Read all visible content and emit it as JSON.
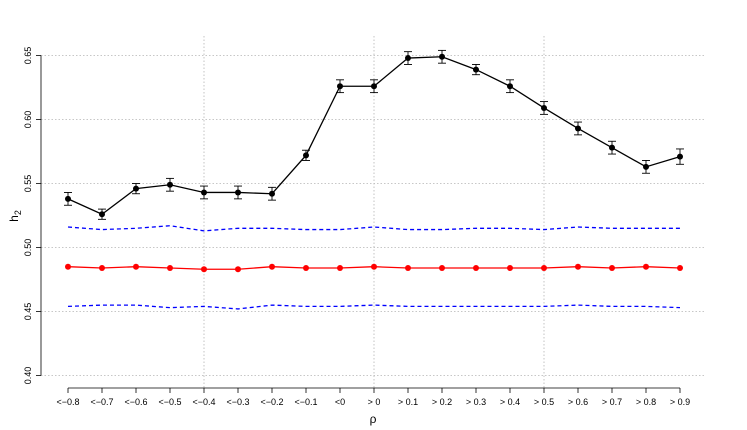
{
  "chart_data": {
    "type": "line",
    "xlabel": "ρ",
    "ylabel": "h",
    "ylabel_sub": "2",
    "ylim": [
      0.4,
      0.65
    ],
    "yticks": [
      "0.40",
      "0.45",
      "0.50",
      "0.55",
      "0.60",
      "0.65"
    ],
    "categories": [
      "<−0.8",
      "<−0.7",
      "<−0.6",
      "<−0.5",
      "<−0.4",
      "<−0.3",
      "<−0.2",
      "<−0.1",
      "<0",
      "> 0",
      "> 0.1",
      "> 0.2",
      "> 0.3",
      "> 0.4",
      "> 0.5",
      "> 0.6",
      "> 0.7",
      "> 0.8",
      "> 0.9"
    ],
    "grid": true,
    "series": [
      {
        "color": "#000000",
        "style": "solid-points-errorbars",
        "values": [
          0.538,
          0.526,
          0.546,
          0.549,
          0.543,
          0.543,
          0.542,
          0.572,
          0.626,
          0.626,
          0.648,
          0.649,
          0.639,
          0.626,
          0.609,
          0.593,
          0.578,
          0.563,
          0.571
        ],
        "errors": [
          0.005,
          0.004,
          0.004,
          0.005,
          0.005,
          0.005,
          0.005,
          0.004,
          0.005,
          0.005,
          0.005,
          0.005,
          0.004,
          0.005,
          0.005,
          0.005,
          0.005,
          0.005,
          0.006
        ]
      },
      {
        "color": "#ff0000",
        "style": "solid-points",
        "values": [
          0.485,
          0.484,
          0.485,
          0.484,
          0.483,
          0.483,
          0.485,
          0.484,
          0.484,
          0.485,
          0.484,
          0.484,
          0.484,
          0.484,
          0.484,
          0.485,
          0.484,
          0.485,
          0.484
        ]
      },
      {
        "color": "#0000ff",
        "style": "dashed",
        "values": [
          0.516,
          0.514,
          0.515,
          0.517,
          0.513,
          0.515,
          0.515,
          0.514,
          0.514,
          0.516,
          0.514,
          0.514,
          0.515,
          0.515,
          0.514,
          0.516,
          0.515,
          0.515,
          0.515
        ]
      },
      {
        "color": "#0000ff",
        "style": "dashed",
        "values": [
          0.454,
          0.455,
          0.455,
          0.453,
          0.454,
          0.452,
          0.455,
          0.454,
          0.454,
          0.455,
          0.454,
          0.454,
          0.454,
          0.454,
          0.454,
          0.455,
          0.454,
          0.454,
          0.453
        ]
      }
    ]
  }
}
